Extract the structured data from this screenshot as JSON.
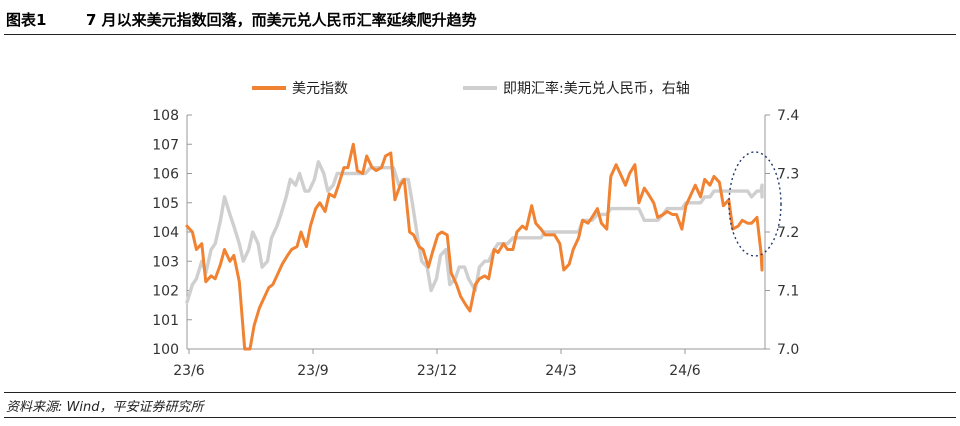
{
  "figure": {
    "label": "图表1",
    "title": "7 月以来美元指数回落，而美元兑人民币汇率延续爬升趋势",
    "source": "资料来源: Wind，平安证券研究所"
  },
  "colors": {
    "dxy": "#f08232",
    "cny": "#cfcfcf",
    "axis": "#999999",
    "ellipse": "#1f3a6b"
  },
  "chart_data": {
    "type": "line",
    "legend_position": "top",
    "grid": false,
    "x_ticks": [
      "23/6",
      "23/9",
      "23/12",
      "24/3",
      "24/6"
    ],
    "x_range": [
      "2023-06-01",
      "2024-08-05"
    ],
    "y_left": {
      "label": "",
      "range": [
        100,
        108
      ],
      "ticks": [
        "100",
        "101",
        "102",
        "103",
        "104",
        "105",
        "106",
        "107",
        "108"
      ]
    },
    "y_right": {
      "label": "",
      "range": [
        7.0,
        7.4
      ],
      "ticks": [
        "7.0",
        "7.1",
        "7.2",
        "7.3",
        "7.4"
      ]
    },
    "series": [
      {
        "name": "美元指数",
        "axis": "left",
        "color": "#f08232",
        "points": [
          [
            "2023-06-01",
            104.2
          ],
          [
            "2023-06-05",
            104.0
          ],
          [
            "2023-06-08",
            103.4
          ],
          [
            "2023-06-12",
            103.6
          ],
          [
            "2023-06-15",
            102.3
          ],
          [
            "2023-06-19",
            102.5
          ],
          [
            "2023-06-22",
            102.4
          ],
          [
            "2023-06-26",
            102.9
          ],
          [
            "2023-06-29",
            103.4
          ],
          [
            "2023-07-03",
            103.0
          ],
          [
            "2023-07-06",
            103.2
          ],
          [
            "2023-07-10",
            102.3
          ],
          [
            "2023-07-13",
            100.6
          ],
          [
            "2023-07-14",
            99.8
          ],
          [
            "2023-07-18",
            99.9
          ],
          [
            "2023-07-21",
            100.8
          ],
          [
            "2023-07-25",
            101.4
          ],
          [
            "2023-07-28",
            101.7
          ],
          [
            "2023-08-01",
            102.1
          ],
          [
            "2023-08-04",
            102.2
          ],
          [
            "2023-08-08",
            102.6
          ],
          [
            "2023-08-11",
            102.9
          ],
          [
            "2023-08-15",
            103.2
          ],
          [
            "2023-08-18",
            103.4
          ],
          [
            "2023-08-22",
            103.5
          ],
          [
            "2023-08-25",
            104.0
          ],
          [
            "2023-08-29",
            103.5
          ],
          [
            "2023-09-01",
            104.2
          ],
          [
            "2023-09-05",
            104.8
          ],
          [
            "2023-09-08",
            105.0
          ],
          [
            "2023-09-12",
            104.7
          ],
          [
            "2023-09-15",
            105.3
          ],
          [
            "2023-09-19",
            105.2
          ],
          [
            "2023-09-22",
            105.6
          ],
          [
            "2023-09-26",
            106.2
          ],
          [
            "2023-09-29",
            106.2
          ],
          [
            "2023-10-03",
            107.0
          ],
          [
            "2023-10-06",
            106.1
          ],
          [
            "2023-10-10",
            106.0
          ],
          [
            "2023-10-13",
            106.6
          ],
          [
            "2023-10-17",
            106.2
          ],
          [
            "2023-10-20",
            106.1
          ],
          [
            "2023-10-24",
            106.2
          ],
          [
            "2023-10-27",
            106.6
          ],
          [
            "2023-10-31",
            106.7
          ],
          [
            "2023-11-03",
            105.1
          ],
          [
            "2023-11-07",
            105.6
          ],
          [
            "2023-11-10",
            105.8
          ],
          [
            "2023-11-14",
            104.0
          ],
          [
            "2023-11-17",
            103.9
          ],
          [
            "2023-11-21",
            103.5
          ],
          [
            "2023-11-24",
            103.4
          ],
          [
            "2023-11-28",
            102.8
          ],
          [
            "2023-12-01",
            103.3
          ],
          [
            "2023-12-05",
            103.9
          ],
          [
            "2023-12-08",
            104.0
          ],
          [
            "2023-12-12",
            103.9
          ],
          [
            "2023-12-15",
            102.6
          ],
          [
            "2023-12-19",
            102.2
          ],
          [
            "2023-12-22",
            101.8
          ],
          [
            "2023-12-26",
            101.5
          ],
          [
            "2023-12-29",
            101.3
          ],
          [
            "2024-01-02",
            102.2
          ],
          [
            "2024-01-05",
            102.4
          ],
          [
            "2024-01-09",
            102.5
          ],
          [
            "2024-01-12",
            102.4
          ],
          [
            "2024-01-16",
            103.4
          ],
          [
            "2024-01-19",
            103.3
          ],
          [
            "2024-01-23",
            103.6
          ],
          [
            "2024-01-26",
            103.4
          ],
          [
            "2024-01-30",
            103.4
          ],
          [
            "2024-02-02",
            104.0
          ],
          [
            "2024-02-06",
            104.2
          ],
          [
            "2024-02-09",
            104.1
          ],
          [
            "2024-02-13",
            104.9
          ],
          [
            "2024-02-16",
            104.3
          ],
          [
            "2024-02-20",
            104.1
          ],
          [
            "2024-02-23",
            103.9
          ],
          [
            "2024-02-27",
            103.9
          ],
          [
            "2024-03-01",
            103.9
          ],
          [
            "2024-03-05",
            103.6
          ],
          [
            "2024-03-08",
            102.7
          ],
          [
            "2024-03-12",
            102.9
          ],
          [
            "2024-03-15",
            103.4
          ],
          [
            "2024-03-19",
            103.8
          ],
          [
            "2024-03-22",
            104.4
          ],
          [
            "2024-03-26",
            104.3
          ],
          [
            "2024-03-29",
            104.5
          ],
          [
            "2024-04-02",
            104.8
          ],
          [
            "2024-04-05",
            104.3
          ],
          [
            "2024-04-09",
            104.1
          ],
          [
            "2024-04-12",
            105.9
          ],
          [
            "2024-04-16",
            106.3
          ],
          [
            "2024-04-19",
            106.0
          ],
          [
            "2024-04-23",
            105.6
          ],
          [
            "2024-04-26",
            106.0
          ],
          [
            "2024-04-30",
            106.3
          ],
          [
            "2024-05-03",
            105.0
          ],
          [
            "2024-05-07",
            105.5
          ],
          [
            "2024-05-10",
            105.3
          ],
          [
            "2024-05-14",
            105.0
          ],
          [
            "2024-05-17",
            104.5
          ],
          [
            "2024-05-21",
            104.6
          ],
          [
            "2024-05-24",
            104.7
          ],
          [
            "2024-05-28",
            104.6
          ],
          [
            "2024-05-31",
            104.6
          ],
          [
            "2024-06-04",
            104.1
          ],
          [
            "2024-06-07",
            104.9
          ],
          [
            "2024-06-11",
            105.3
          ],
          [
            "2024-06-14",
            105.6
          ],
          [
            "2024-06-18",
            105.2
          ],
          [
            "2024-06-21",
            105.8
          ],
          [
            "2024-06-25",
            105.6
          ],
          [
            "2024-06-28",
            105.9
          ],
          [
            "2024-07-02",
            105.7
          ],
          [
            "2024-07-05",
            104.9
          ],
          [
            "2024-07-09",
            105.1
          ],
          [
            "2024-07-12",
            104.1
          ],
          [
            "2024-07-16",
            104.2
          ],
          [
            "2024-07-19",
            104.4
          ],
          [
            "2024-07-23",
            104.3
          ],
          [
            "2024-07-26",
            104.3
          ],
          [
            "2024-07-30",
            104.5
          ],
          [
            "2024-08-02",
            103.3
          ],
          [
            "2024-08-05",
            102.7
          ],
          [
            "2024-08-08",
            103.2
          ],
          [
            "2024-08-12",
            103.1
          ]
        ]
      },
      {
        "name": "即期汇率:美元兑人民币，右轴",
        "axis": "right",
        "color": "#cfcfcf",
        "points": [
          [
            "2023-06-01",
            7.08
          ],
          [
            "2023-06-05",
            7.11
          ],
          [
            "2023-06-08",
            7.12
          ],
          [
            "2023-06-12",
            7.15
          ],
          [
            "2023-06-15",
            7.13
          ],
          [
            "2023-06-19",
            7.17
          ],
          [
            "2023-06-22",
            7.18
          ],
          [
            "2023-06-26",
            7.22
          ],
          [
            "2023-06-29",
            7.26
          ],
          [
            "2023-07-03",
            7.23
          ],
          [
            "2023-07-06",
            7.21
          ],
          [
            "2023-07-10",
            7.18
          ],
          [
            "2023-07-13",
            7.15
          ],
          [
            "2023-07-17",
            7.17
          ],
          [
            "2023-07-20",
            7.2
          ],
          [
            "2023-07-24",
            7.18
          ],
          [
            "2023-07-27",
            7.14
          ],
          [
            "2023-07-31",
            7.15
          ],
          [
            "2023-08-03",
            7.19
          ],
          [
            "2023-08-07",
            7.21
          ],
          [
            "2023-08-10",
            7.23
          ],
          [
            "2023-08-14",
            7.26
          ],
          [
            "2023-08-17",
            7.29
          ],
          [
            "2023-08-21",
            7.28
          ],
          [
            "2023-08-24",
            7.3
          ],
          [
            "2023-08-28",
            7.27
          ],
          [
            "2023-08-31",
            7.27
          ],
          [
            "2023-09-04",
            7.29
          ],
          [
            "2023-09-07",
            7.32
          ],
          [
            "2023-09-11",
            7.3
          ],
          [
            "2023-09-14",
            7.27
          ],
          [
            "2023-09-18",
            7.28
          ],
          [
            "2023-09-21",
            7.3
          ],
          [
            "2023-09-25",
            7.3
          ],
          [
            "2023-09-28",
            7.3
          ],
          [
            "2023-10-05",
            7.3
          ],
          [
            "2023-10-09",
            7.3
          ],
          [
            "2023-10-12",
            7.3
          ],
          [
            "2023-10-16",
            7.31
          ],
          [
            "2023-10-19",
            7.31
          ],
          [
            "2023-10-23",
            7.31
          ],
          [
            "2023-10-26",
            7.31
          ],
          [
            "2023-10-30",
            7.31
          ],
          [
            "2023-11-02",
            7.31
          ],
          [
            "2023-11-06",
            7.28
          ],
          [
            "2023-11-09",
            7.29
          ],
          [
            "2023-11-13",
            7.29
          ],
          [
            "2023-11-16",
            7.25
          ],
          [
            "2023-11-20",
            7.19
          ],
          [
            "2023-11-23",
            7.15
          ],
          [
            "2023-11-27",
            7.14
          ],
          [
            "2023-11-30",
            7.1
          ],
          [
            "2023-12-04",
            7.12
          ],
          [
            "2023-12-07",
            7.16
          ],
          [
            "2023-12-11",
            7.17
          ],
          [
            "2023-12-14",
            7.11
          ],
          [
            "2023-12-18",
            7.12
          ],
          [
            "2023-12-21",
            7.14
          ],
          [
            "2023-12-25",
            7.14
          ],
          [
            "2023-12-28",
            7.12
          ],
          [
            "2024-01-02",
            7.1
          ],
          [
            "2024-01-05",
            7.14
          ],
          [
            "2024-01-09",
            7.15
          ],
          [
            "2024-01-12",
            7.15
          ],
          [
            "2024-01-16",
            7.17
          ],
          [
            "2024-01-19",
            7.18
          ],
          [
            "2024-01-23",
            7.18
          ],
          [
            "2024-01-26",
            7.18
          ],
          [
            "2024-01-30",
            7.19
          ],
          [
            "2024-02-02",
            7.19
          ],
          [
            "2024-02-06",
            7.19
          ],
          [
            "2024-02-09",
            7.19
          ],
          [
            "2024-02-13",
            7.19
          ],
          [
            "2024-02-16",
            7.19
          ],
          [
            "2024-02-20",
            7.19
          ],
          [
            "2024-02-23",
            7.2
          ],
          [
            "2024-02-27",
            7.2
          ],
          [
            "2024-03-01",
            7.2
          ],
          [
            "2024-03-05",
            7.2
          ],
          [
            "2024-03-08",
            7.2
          ],
          [
            "2024-03-12",
            7.2
          ],
          [
            "2024-03-15",
            7.2
          ],
          [
            "2024-03-19",
            7.2
          ],
          [
            "2024-03-22",
            7.22
          ],
          [
            "2024-03-26",
            7.22
          ],
          [
            "2024-03-29",
            7.22
          ],
          [
            "2024-04-02",
            7.23
          ],
          [
            "2024-04-05",
            7.23
          ],
          [
            "2024-04-09",
            7.23
          ],
          [
            "2024-04-12",
            7.24
          ],
          [
            "2024-04-16",
            7.24
          ],
          [
            "2024-04-19",
            7.24
          ],
          [
            "2024-04-23",
            7.24
          ],
          [
            "2024-04-26",
            7.24
          ],
          [
            "2024-04-30",
            7.24
          ],
          [
            "2024-05-03",
            7.24
          ],
          [
            "2024-05-07",
            7.22
          ],
          [
            "2024-05-10",
            7.22
          ],
          [
            "2024-05-14",
            7.22
          ],
          [
            "2024-05-17",
            7.22
          ],
          [
            "2024-05-21",
            7.23
          ],
          [
            "2024-05-24",
            7.24
          ],
          [
            "2024-05-28",
            7.24
          ],
          [
            "2024-05-31",
            7.24
          ],
          [
            "2024-06-04",
            7.24
          ],
          [
            "2024-06-07",
            7.25
          ],
          [
            "2024-06-11",
            7.25
          ],
          [
            "2024-06-14",
            7.25
          ],
          [
            "2024-06-18",
            7.25
          ],
          [
            "2024-06-21",
            7.26
          ],
          [
            "2024-06-25",
            7.26
          ],
          [
            "2024-06-28",
            7.27
          ],
          [
            "2024-07-02",
            7.27
          ],
          [
            "2024-07-05",
            7.27
          ],
          [
            "2024-07-09",
            7.27
          ],
          [
            "2024-07-12",
            7.27
          ],
          [
            "2024-07-16",
            7.27
          ],
          [
            "2024-07-19",
            7.27
          ],
          [
            "2024-07-23",
            7.27
          ],
          [
            "2024-07-26",
            7.26
          ],
          [
            "2024-07-30",
            7.27
          ],
          [
            "2024-08-02",
            7.27
          ],
          [
            "2024-08-05",
            7.28
          ],
          [
            "2024-08-08",
            7.26
          ],
          [
            "2024-08-12",
            7.26
          ]
        ]
      }
    ]
  }
}
